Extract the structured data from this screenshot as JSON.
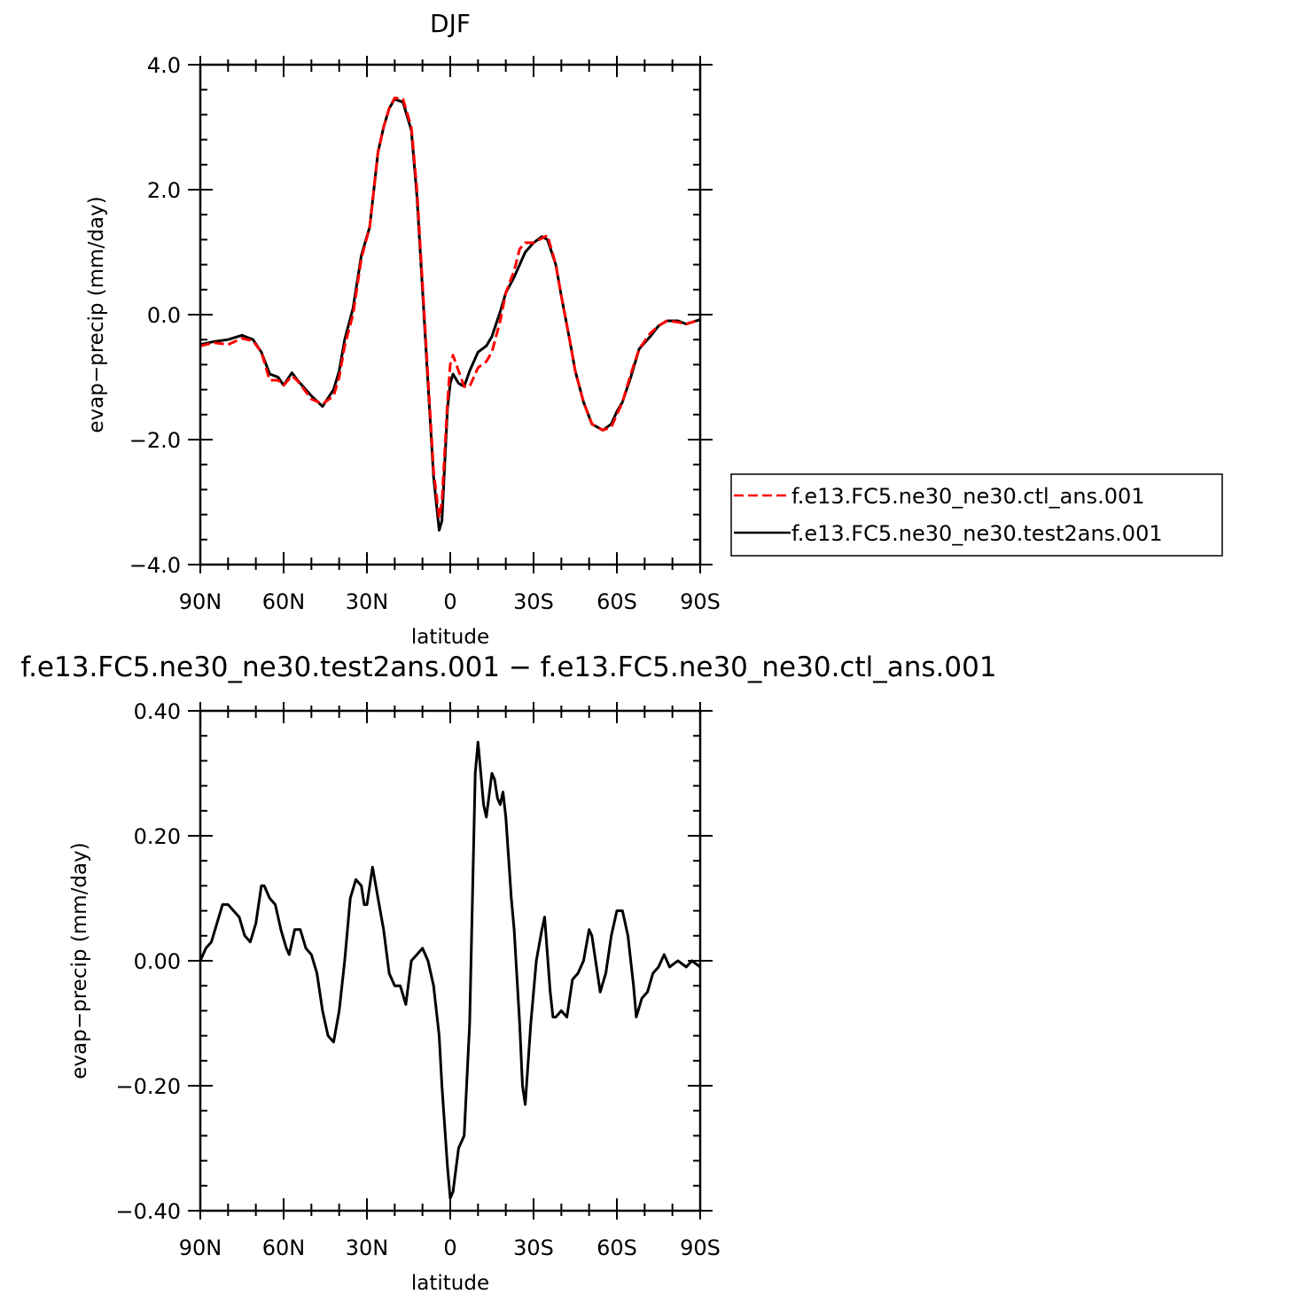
{
  "chart_data": [
    {
      "type": "line",
      "title": "DJF",
      "xlabel": "latitude",
      "ylabel": "evap−precip (mm/day)",
      "xlim": [
        90,
        -90
      ],
      "ylim": [
        -4.0,
        4.0
      ],
      "x_ticks": [
        90,
        60,
        30,
        0,
        -30,
        -60,
        -90
      ],
      "x_tick_labels": [
        "90N",
        "60N",
        "30N",
        "0",
        "30S",
        "60S",
        "90S"
      ],
      "y_ticks": [
        4.0,
        2.0,
        0.0,
        -2.0,
        -4.0
      ],
      "y_tick_labels": [
        "4.0",
        "2.0",
        "0.0",
        "−2.0",
        "−4.0"
      ],
      "legend_position": "right",
      "series": [
        {
          "name": "f.e13.FC5.ne30_ne30.ctl_ans.001",
          "color": "#ff0000",
          "dash": "dashed",
          "points": [
            [
              90,
              -0.5
            ],
            [
              85,
              -0.45
            ],
            [
              80,
              -0.48
            ],
            [
              75,
              -0.38
            ],
            [
              71,
              -0.42
            ],
            [
              68,
              -0.6
            ],
            [
              65,
              -1.05
            ],
            [
              62,
              -1.05
            ],
            [
              60,
              -1.13
            ],
            [
              57,
              -0.98
            ],
            [
              55,
              -1.06
            ],
            [
              50,
              -1.35
            ],
            [
              46,
              -1.43
            ],
            [
              42,
              -1.3
            ],
            [
              40,
              -1.0
            ],
            [
              38,
              -0.5
            ],
            [
              35,
              0.0
            ],
            [
              32,
              0.9
            ],
            [
              29,
              1.4
            ],
            [
              26,
              2.6
            ],
            [
              24,
              3.0
            ],
            [
              22,
              3.3
            ],
            [
              20,
              3.47
            ],
            [
              17,
              3.45
            ],
            [
              14,
              3.0
            ],
            [
              12,
              2.0
            ],
            [
              10,
              0.5
            ],
            [
              8,
              -1.0
            ],
            [
              6,
              -2.5
            ],
            [
              4,
              -3.25
            ],
            [
              3,
              -3.0
            ],
            [
              1,
              -1.4
            ],
            [
              0,
              -0.8
            ],
            [
              -1,
              -0.65
            ],
            [
              -3,
              -0.9
            ],
            [
              -5,
              -1.15
            ],
            [
              -7,
              -1.15
            ],
            [
              -10,
              -0.85
            ],
            [
              -13,
              -0.75
            ],
            [
              -15,
              -0.6
            ],
            [
              -18,
              -0.1
            ],
            [
              -20,
              0.35
            ],
            [
              -23,
              0.7
            ],
            [
              -25,
              1.05
            ],
            [
              -27,
              1.15
            ],
            [
              -30,
              1.15
            ],
            [
              -32,
              1.2
            ],
            [
              -35,
              1.27
            ],
            [
              -38,
              0.8
            ],
            [
              -40,
              0.3
            ],
            [
              -43,
              -0.4
            ],
            [
              -45,
              -0.9
            ],
            [
              -48,
              -1.4
            ],
            [
              -51,
              -1.75
            ],
            [
              -55,
              -1.85
            ],
            [
              -58,
              -1.8
            ],
            [
              -60,
              -1.6
            ],
            [
              -62,
              -1.4
            ],
            [
              -65,
              -0.95
            ],
            [
              -68,
              -0.55
            ],
            [
              -72,
              -0.3
            ],
            [
              -75,
              -0.18
            ],
            [
              -78,
              -0.1
            ],
            [
              -82,
              -0.12
            ],
            [
              -85,
              -0.15
            ],
            [
              -90,
              -0.08
            ]
          ]
        },
        {
          "name": "f.e13.FC5.ne30_ne30.test2ans.001",
          "color": "#000000",
          "dash": "solid",
          "points": [
            [
              90,
              -0.48
            ],
            [
              85,
              -0.43
            ],
            [
              80,
              -0.4
            ],
            [
              75,
              -0.33
            ],
            [
              71,
              -0.4
            ],
            [
              68,
              -0.6
            ],
            [
              65,
              -0.95
            ],
            [
              62,
              -1.0
            ],
            [
              60,
              -1.13
            ],
            [
              57,
              -0.93
            ],
            [
              55,
              -1.05
            ],
            [
              50,
              -1.3
            ],
            [
              46,
              -1.47
            ],
            [
              42,
              -1.2
            ],
            [
              40,
              -0.9
            ],
            [
              38,
              -0.4
            ],
            [
              35,
              0.1
            ],
            [
              32,
              0.95
            ],
            [
              29,
              1.4
            ],
            [
              26,
              2.6
            ],
            [
              24,
              3.0
            ],
            [
              22,
              3.3
            ],
            [
              20,
              3.45
            ],
            [
              17,
              3.4
            ],
            [
              14,
              2.95
            ],
            [
              12,
              1.9
            ],
            [
              10,
              0.4
            ],
            [
              8,
              -1.1
            ],
            [
              6,
              -2.6
            ],
            [
              4,
              -3.45
            ],
            [
              3,
              -3.3
            ],
            [
              1,
              -1.5
            ],
            [
              0,
              -1.1
            ],
            [
              -1,
              -0.95
            ],
            [
              -3,
              -1.1
            ],
            [
              -5,
              -1.15
            ],
            [
              -7,
              -0.9
            ],
            [
              -10,
              -0.6
            ],
            [
              -13,
              -0.5
            ],
            [
              -15,
              -0.35
            ],
            [
              -18,
              0.05
            ],
            [
              -20,
              0.35
            ],
            [
              -23,
              0.6
            ],
            [
              -25,
              0.8
            ],
            [
              -27,
              1.0
            ],
            [
              -30,
              1.15
            ],
            [
              -33,
              1.25
            ],
            [
              -35,
              1.2
            ],
            [
              -38,
              0.8
            ],
            [
              -40,
              0.3
            ],
            [
              -43,
              -0.4
            ],
            [
              -45,
              -0.9
            ],
            [
              -48,
              -1.4
            ],
            [
              -51,
              -1.75
            ],
            [
              -55,
              -1.85
            ],
            [
              -58,
              -1.75
            ],
            [
              -60,
              -1.55
            ],
            [
              -62,
              -1.4
            ],
            [
              -65,
              -1.0
            ],
            [
              -68,
              -0.55
            ],
            [
              -72,
              -0.35
            ],
            [
              -75,
              -0.18
            ],
            [
              -78,
              -0.1
            ],
            [
              -82,
              -0.1
            ],
            [
              -85,
              -0.15
            ],
            [
              -90,
              -0.08
            ]
          ]
        }
      ]
    },
    {
      "type": "line",
      "title": "f.e13.FC5.ne30_ne30.test2ans.001 − f.e13.FC5.ne30_ne30.ctl_ans.001",
      "xlabel": "latitude",
      "ylabel": "evap−precip (mm/day)",
      "xlim": [
        90,
        -90
      ],
      "ylim": [
        -0.4,
        0.4
      ],
      "x_ticks": [
        90,
        60,
        30,
        0,
        -30,
        -60,
        -90
      ],
      "x_tick_labels": [
        "90N",
        "60N",
        "30N",
        "0",
        "30S",
        "60S",
        "90S"
      ],
      "y_ticks": [
        0.4,
        0.2,
        0.0,
        -0.2,
        -0.4
      ],
      "y_tick_labels": [
        "0.40",
        "0.20",
        "0.00",
        "−0.20",
        "−0.40"
      ],
      "series": [
        {
          "color": "#000000",
          "dash": "solid",
          "points": [
            [
              90,
              0.0
            ],
            [
              88,
              0.02
            ],
            [
              86,
              0.03
            ],
            [
              84,
              0.06
            ],
            [
              82,
              0.09
            ],
            [
              80,
              0.09
            ],
            [
              76,
              0.07
            ],
            [
              74,
              0.04
            ],
            [
              72,
              0.03
            ],
            [
              70,
              0.06
            ],
            [
              68,
              0.12
            ],
            [
              67,
              0.12
            ],
            [
              65,
              0.1
            ],
            [
              63,
              0.09
            ],
            [
              61,
              0.05
            ],
            [
              59,
              0.02
            ],
            [
              58,
              0.01
            ],
            [
              56,
              0.05
            ],
            [
              54,
              0.05
            ],
            [
              52,
              0.02
            ],
            [
              50,
              0.01
            ],
            [
              48,
              -0.02
            ],
            [
              46,
              -0.08
            ],
            [
              44,
              -0.12
            ],
            [
              42,
              -0.13
            ],
            [
              40,
              -0.08
            ],
            [
              38,
              0.0
            ],
            [
              36,
              0.1
            ],
            [
              34,
              0.13
            ],
            [
              32,
              0.12
            ],
            [
              31,
              0.09
            ],
            [
              30,
              0.09
            ],
            [
              28,
              0.15
            ],
            [
              26,
              0.1
            ],
            [
              24,
              0.05
            ],
            [
              22,
              -0.02
            ],
            [
              20,
              -0.04
            ],
            [
              18,
              -0.04
            ],
            [
              16,
              -0.07
            ],
            [
              14,
              0.0
            ],
            [
              12,
              0.01
            ],
            [
              10,
              0.02
            ],
            [
              8,
              0.0
            ],
            [
              6,
              -0.04
            ],
            [
              4,
              -0.12
            ],
            [
              3,
              -0.2
            ],
            [
              1,
              -0.33
            ],
            [
              0,
              -0.38
            ],
            [
              -1,
              -0.37
            ],
            [
              -3,
              -0.3
            ],
            [
              -5,
              -0.28
            ],
            [
              -7,
              -0.1
            ],
            [
              -9,
              0.3
            ],
            [
              -10,
              0.35
            ],
            [
              -11,
              0.3
            ],
            [
              -12,
              0.25
            ],
            [
              -13,
              0.23
            ],
            [
              -15,
              0.3
            ],
            [
              -16,
              0.29
            ],
            [
              -17,
              0.26
            ],
            [
              -18,
              0.25
            ],
            [
              -19,
              0.27
            ],
            [
              -20,
              0.23
            ],
            [
              -22,
              0.1
            ],
            [
              -23,
              0.05
            ],
            [
              -25,
              -0.1
            ],
            [
              -26,
              -0.2
            ],
            [
              -27,
              -0.23
            ],
            [
              -29,
              -0.1
            ],
            [
              -31,
              0.0
            ],
            [
              -33,
              0.05
            ],
            [
              -34,
              0.07
            ],
            [
              -36,
              -0.05
            ],
            [
              -37,
              -0.09
            ],
            [
              -38,
              -0.09
            ],
            [
              -40,
              -0.08
            ],
            [
              -42,
              -0.09
            ],
            [
              -44,
              -0.03
            ],
            [
              -46,
              -0.02
            ],
            [
              -48,
              0.0
            ],
            [
              -50,
              0.05
            ],
            [
              -51,
              0.04
            ],
            [
              -53,
              -0.02
            ],
            [
              -54,
              -0.05
            ],
            [
              -56,
              -0.02
            ],
            [
              -58,
              0.04
            ],
            [
              -60,
              0.08
            ],
            [
              -62,
              0.08
            ],
            [
              -64,
              0.04
            ],
            [
              -66,
              -0.04
            ],
            [
              -67,
              -0.09
            ],
            [
              -69,
              -0.06
            ],
            [
              -71,
              -0.05
            ],
            [
              -73,
              -0.02
            ],
            [
              -75,
              -0.01
            ],
            [
              -77,
              0.01
            ],
            [
              -79,
              -0.01
            ],
            [
              -82,
              0.0
            ],
            [
              -85,
              -0.01
            ],
            [
              -87,
              0.0
            ],
            [
              -90,
              -0.01
            ]
          ]
        }
      ]
    }
  ]
}
